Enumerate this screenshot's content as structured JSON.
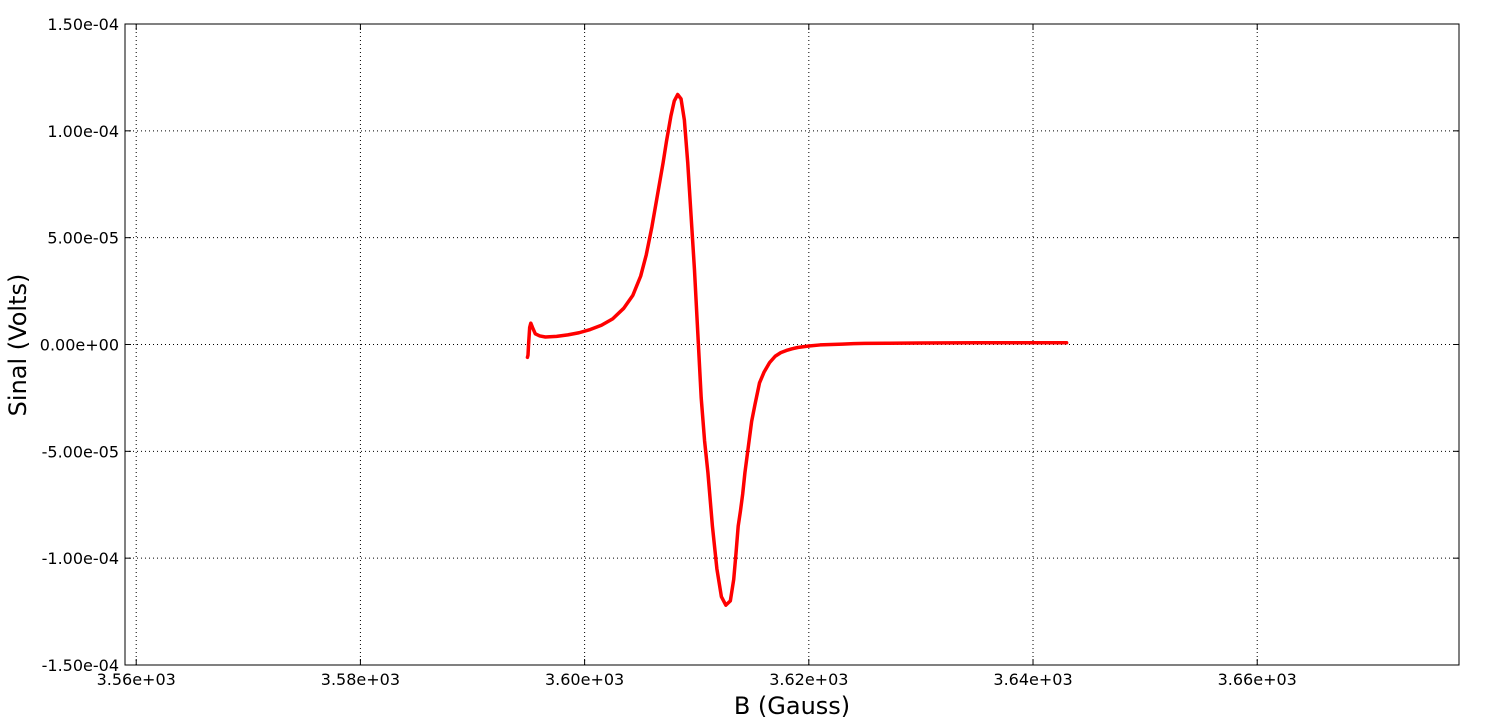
{
  "chart_data": {
    "type": "line",
    "title": "",
    "xlabel": "B (Gauss)",
    "ylabel": "Sinal (Volts)",
    "xlim": [
      3559.0,
      3678.0
    ],
    "ylim": [
      -0.00015,
      0.00015
    ],
    "grid": true,
    "grid_style": "dotted",
    "legend": "none",
    "x_ticks": [
      {
        "value": 3560,
        "label": "3.56e+03"
      },
      {
        "value": 3580,
        "label": "3.58e+03"
      },
      {
        "value": 3600,
        "label": "3.60e+03"
      },
      {
        "value": 3620,
        "label": "3.62e+03"
      },
      {
        "value": 3640,
        "label": "3.64e+03"
      },
      {
        "value": 3660,
        "label": "3.66e+03"
      }
    ],
    "y_ticks": [
      {
        "value": 0.00015,
        "label": "1.50e-04"
      },
      {
        "value": 0.0001,
        "label": "1.00e-04"
      },
      {
        "value": 5e-05,
        "label": "5.00e-05"
      },
      {
        "value": 0.0,
        "label": "0.00e+00"
      },
      {
        "value": -5e-05,
        "label": "-5.00e-05"
      },
      {
        "value": -0.0001,
        "label": "-1.00e-04"
      },
      {
        "value": -0.00015,
        "label": "-1.50e-04"
      }
    ],
    "series": [
      {
        "color": "#ff0000",
        "x": [
          3594.9,
          3594.95,
          3595.0,
          3595.1,
          3595.2,
          3595.35,
          3595.6,
          3596.0,
          3596.5,
          3597.5,
          3598.5,
          3599.5,
          3600.5,
          3601.5,
          3602.5,
          3603.5,
          3604.3,
          3605.0,
          3605.5,
          3606.0,
          3606.5,
          3607.0,
          3607.3,
          3607.7,
          3608.0,
          3608.3,
          3608.6,
          3608.9,
          3609.2,
          3609.5,
          3609.8,
          3610.1,
          3610.4,
          3610.7,
          3611.0,
          3611.4,
          3611.8,
          3612.2,
          3612.6,
          3613.0,
          3613.3,
          3613.5,
          3613.7,
          3613.9,
          3614.1,
          3614.3,
          3614.6,
          3614.9,
          3615.2,
          3615.6,
          3616.0,
          3616.5,
          3617.0,
          3617.5,
          3618.0,
          3618.5,
          3619.0,
          3620.0,
          3621.0,
          3622.0,
          3623.0,
          3624.0,
          3625.0,
          3627.0,
          3630.0,
          3635.0,
          3640.0,
          3643.0
        ],
        "y": [
          -6e-06,
          -5e-06,
          0.0,
          8e-06,
          1e-05,
          8e-06,
          5e-06,
          4e-06,
          3.5e-06,
          3.8e-06,
          4.5e-06,
          5.5e-06,
          7e-06,
          9e-06,
          1.2e-05,
          1.7e-05,
          2.3e-05,
          3.2e-05,
          4.2e-05,
          5.5e-05,
          7e-05,
          8.5e-05,
          9.5e-05,
          0.000107,
          0.000114,
          0.000117,
          0.000115,
          0.000105,
          8.5e-05,
          6e-05,
          3.5e-05,
          5e-06,
          -2.5e-05,
          -4.5e-05,
          -6e-05,
          -8.5e-05,
          -0.000105,
          -0.000118,
          -0.000122,
          -0.00012,
          -0.00011,
          -9.8e-05,
          -8.5e-05,
          -7.8e-05,
          -7e-05,
          -6e-05,
          -4.8e-05,
          -3.6e-05,
          -2.8e-05,
          -1.8e-05,
          -1.3e-05,
          -8.5e-06,
          -5.5e-06,
          -3.8e-06,
          -2.8e-06,
          -2e-06,
          -1.4e-06,
          -7e-07,
          -2e-07,
          0.0,
          2e-07,
          4e-07,
          5e-07,
          6e-07,
          7e-07,
          8e-07,
          8e-07,
          8e-07
        ]
      }
    ]
  }
}
